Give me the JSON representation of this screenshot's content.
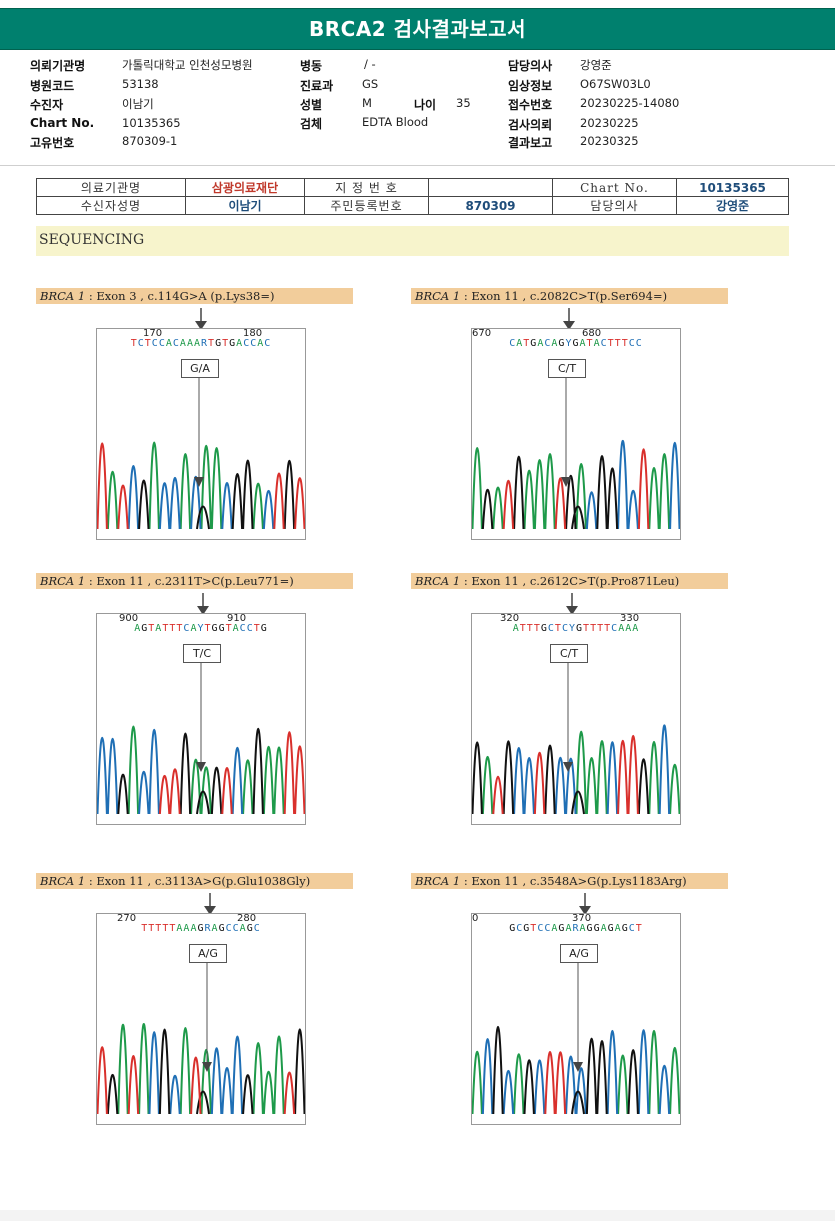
{
  "report": {
    "title": "BRCA2 검사결과보고서"
  },
  "header_fields": {
    "inst_label": "의뢰기관명",
    "inst_value": "가톨릭대학교 인천성모병원",
    "hosp_label": "병원코드",
    "hosp_value": "53138",
    "patient_label": "수진자",
    "patient_value": "이남기",
    "chart_label": "Chart No.",
    "chart_value": "10135365",
    "uid_label": "고유번호",
    "uid_value": "870309-1",
    "ward_label": "병동",
    "ward_value": "/ -",
    "dept_label": "진료과",
    "dept_value": "GS",
    "sex_label": "성별",
    "sex_value": "M",
    "age_label": "나이",
    "age_value": "35",
    "specimen_label": "검체",
    "specimen_value": "EDTA Blood",
    "doctor_label": "담당의사",
    "doctor_value": "강영준",
    "clinical_label": "임상정보",
    "clinical_value": "O67SW03L0",
    "receipt_label": "접수번호",
    "receipt_value": "20230225-14080",
    "request_label": "검사의뢰",
    "request_value": "20230225",
    "result_label": "결과보고",
    "result_value": "20230325"
  },
  "ref_table": {
    "r1c1": "의료기관명",
    "r1c2": "삼광의료재단",
    "r1c3": "지 정 번 호",
    "r1c4": "",
    "r1c5": "Chart No.",
    "r1c6": "10135365",
    "r2c1": "수신자성명",
    "r2c2": "이남기",
    "r2c3": "주민등록번호",
    "r2c4": "870309",
    "r2c5": "담당의사",
    "r2c6": "강영준"
  },
  "section": {
    "title": "SEQUENCING"
  },
  "panels": [
    {
      "gene": "BRCA 1",
      "variant": ": Exon 3 , c.114G>A (p.Lys38=)",
      "pos1": "170",
      "pos2": "180",
      "seq": "TCTCCACAAARTGTGACCAC",
      "call": "G/A"
    },
    {
      "gene": "BRCA 1",
      "variant": ": Exon 11 , c.2082C>T(p.Ser694=)",
      "pos1": "670",
      "pos2": "680",
      "seq": "CATGACAGYGATACTTTCC",
      "call": "C/T"
    },
    {
      "gene": "BRCA 1",
      "variant": ": Exon 11 , c.2311T>C(p.Leu771=)",
      "pos1": "900",
      "pos2": "910",
      "seq": "AGTATTTCAYTGGTACCTG",
      "call": "T/C"
    },
    {
      "gene": "BRCA 1",
      "variant": ": Exon 11 , c.2612C>T(p.Pro871Leu)",
      "pos1": "320",
      "pos2": "330",
      "seq": "ATTTGCTCYGTTTTCAAA",
      "call": "C/T"
    },
    {
      "gene": "BRCA 1",
      "variant": ": Exon 11 , c.3113A>G(p.Glu1038Gly)",
      "pos1": "270",
      "pos2": "280",
      "seq": "TTTTTAAAGRAGCCAGC",
      "call": "A/G"
    },
    {
      "gene": "BRCA 1",
      "variant": ": Exon 11 , c.3548A>G(p.Lys1183Arg)",
      "pos1": "0",
      "pos2": "370",
      "seq": "GCGTCCAGARAGGAGAGCT",
      "call": "A/G"
    }
  ],
  "colors": {
    "A": "#1e9a4a",
    "C": "#1f6fb5",
    "G": "#111111",
    "T": "#d9302c",
    "header": "#00806e",
    "label_bg": "#f2cd9b",
    "section_bg": "#f7f4cc"
  }
}
